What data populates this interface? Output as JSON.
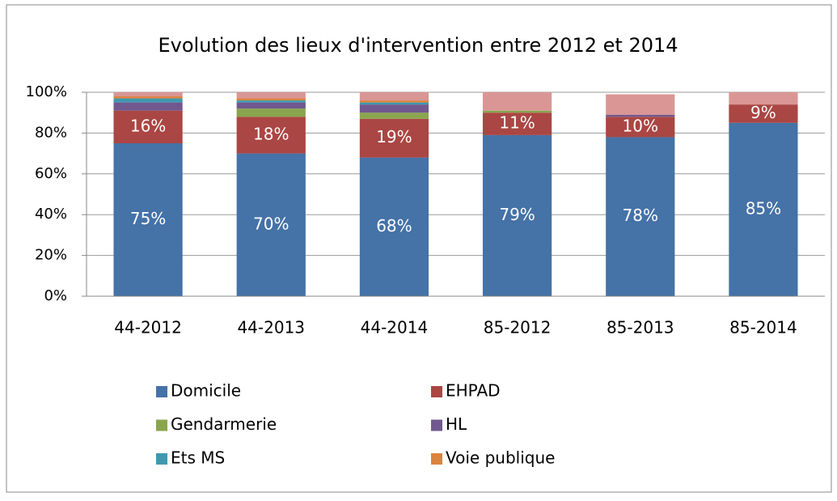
{
  "chart_data": {
    "type": "stacked_bar",
    "title": "Evolution des lieux d'intervention entre 2012 et 2014",
    "categories": [
      "44-2012",
      "44-2013",
      "44-2014",
      "85-2012",
      "85-2013",
      "85-2014"
    ],
    "series": [
      {
        "name": "Domicile",
        "color": "#4572a7",
        "values": [
          75,
          70,
          68,
          79,
          78,
          85
        ],
        "value_labels": [
          "75%",
          "70%",
          "68%",
          "79%",
          "78%",
          "85%"
        ]
      },
      {
        "name": "EHPAD",
        "color": "#aa4643",
        "values": [
          16,
          18,
          19,
          11,
          10,
          9
        ],
        "value_labels": [
          "16%",
          "18%",
          "19%",
          "11%",
          "10%",
          "9%"
        ]
      },
      {
        "name": "Gendarmerie",
        "color": "#89a54e",
        "values": [
          0,
          4,
          3,
          1,
          0,
          0
        ]
      },
      {
        "name": "HL",
        "color": "#71588f",
        "values": [
          4,
          3,
          4,
          0,
          1,
          0
        ]
      },
      {
        "name": "Ets MS",
        "color": "#4198af",
        "values": [
          2,
          1,
          1,
          0,
          0,
          0
        ]
      },
      {
        "name": "Voie publique",
        "color": "#db843d",
        "values": [
          1,
          1,
          1,
          0,
          0,
          0
        ]
      },
      {
        "color": "#d99694",
        "values": [
          2,
          3,
          4,
          9,
          10,
          6
        ]
      }
    ],
    "ylim": [
      0,
      100
    ],
    "yticks": [
      {
        "value": 0,
        "label": "0%"
      },
      {
        "value": 20,
        "label": "20%"
      },
      {
        "value": 40,
        "label": "40%"
      },
      {
        "value": 60,
        "label": "60%"
      },
      {
        "value": 80,
        "label": "80%"
      },
      {
        "value": 100,
        "label": "100%"
      }
    ],
    "grid": true
  }
}
